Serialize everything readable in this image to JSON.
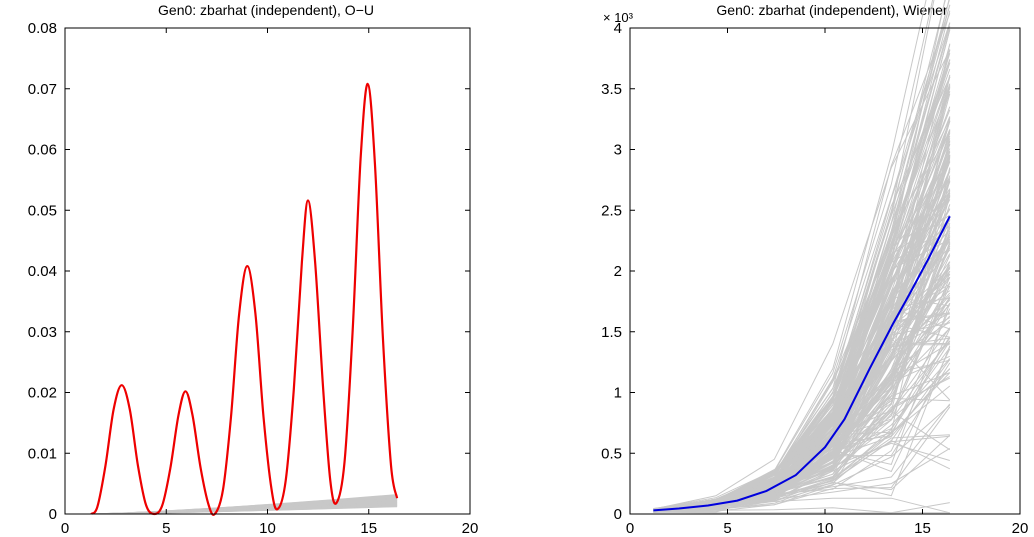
{
  "chart_data": [
    {
      "type": "line",
      "title": "Gen0: zbarhat (independent), O−U",
      "xlabel": "",
      "ylabel": "",
      "xlim": [
        0,
        20
      ],
      "ylim": [
        0,
        0.08
      ],
      "xticks": [
        0,
        5,
        10,
        15,
        20
      ],
      "yticks": [
        0,
        0.01,
        0.02,
        0.03,
        0.04,
        0.05,
        0.06,
        0.07,
        0.08
      ],
      "xtick_labels": [
        "0",
        "5",
        "10",
        "15",
        "20"
      ],
      "ytick_labels": [
        "0",
        "0.01",
        "0.02",
        "0.03",
        "0.04",
        "0.05",
        "0.06",
        "0.07",
        "0.08"
      ],
      "grid": false,
      "legend": "none",
      "series": [
        {
          "color": "#ee0000",
          "values_xy": [
            [
              1.3,
              0.0
            ],
            [
              1.6,
              0.0012
            ],
            [
              2.0,
              0.008
            ],
            [
              2.4,
              0.0172
            ],
            [
              2.8,
              0.0212
            ],
            [
              3.2,
              0.0172
            ],
            [
              3.6,
              0.008
            ],
            [
              4.0,
              0.0015
            ],
            [
              4.4,
              0.0
            ],
            [
              4.8,
              0.0014
            ],
            [
              5.2,
              0.0075
            ],
            [
              5.6,
              0.0162
            ],
            [
              5.95,
              0.0202
            ],
            [
              6.3,
              0.0162
            ],
            [
              6.7,
              0.0075
            ],
            [
              7.1,
              0.0014
            ],
            [
              7.4,
              0.0
            ],
            [
              7.8,
              0.004
            ],
            [
              8.2,
              0.016
            ],
            [
              8.6,
              0.033
            ],
            [
              9.0,
              0.0408
            ],
            [
              9.4,
              0.033
            ],
            [
              9.8,
              0.016
            ],
            [
              10.2,
              0.004
            ],
            [
              10.5,
              0.0008
            ],
            [
              10.9,
              0.0055
            ],
            [
              11.3,
              0.0205
            ],
            [
              11.7,
              0.0415
            ],
            [
              12.0,
              0.0516
            ],
            [
              12.35,
              0.0415
            ],
            [
              12.75,
              0.0205
            ],
            [
              13.1,
              0.0055
            ],
            [
              13.4,
              0.0018
            ],
            [
              13.8,
              0.0085
            ],
            [
              14.2,
              0.03
            ],
            [
              14.6,
              0.0585
            ],
            [
              14.95,
              0.0708
            ],
            [
              15.3,
              0.058
            ],
            [
              15.7,
              0.029
            ],
            [
              16.1,
              0.008
            ],
            [
              16.4,
              0.0026
            ]
          ]
        }
      ],
      "gray_band": {
        "color": "#c8c8c8",
        "start": [
          1.3,
          0.0
        ],
        "end": [
          16.4,
          0.0032
        ],
        "end_low": [
          16.4,
          0.0012
        ],
        "count": 30
      }
    },
    {
      "type": "line",
      "title": "Gen0: zbarhat (independent), Wiener",
      "xlabel": "",
      "ylabel": "",
      "exponent_label": "× 10³",
      "xlim": [
        0,
        20
      ],
      "ylim": [
        0,
        4
      ],
      "xticks": [
        0,
        5,
        10,
        15,
        20
      ],
      "yticks": [
        0,
        0.5,
        1,
        1.5,
        2,
        2.5,
        3,
        3.5,
        4
      ],
      "xtick_labels": [
        "0",
        "5",
        "10",
        "15",
        "20"
      ],
      "ytick_labels": [
        "0",
        "0.5",
        "1",
        "1.5",
        "2",
        "2.5",
        "3",
        "3.5",
        "4"
      ],
      "grid": false,
      "legend": "none",
      "mean_series": {
        "color": "#0000dd",
        "values_xy": [
          [
            1.2,
            0.03
          ],
          [
            2.5,
            0.045
          ],
          [
            4.0,
            0.07
          ],
          [
            5.5,
            0.11
          ],
          [
            7.0,
            0.19
          ],
          [
            8.5,
            0.32
          ],
          [
            10.0,
            0.55
          ],
          [
            11.0,
            0.78
          ],
          [
            12.3,
            1.2
          ],
          [
            13.5,
            1.57
          ],
          [
            14.3,
            1.8
          ],
          [
            15.3,
            2.1
          ],
          [
            16.4,
            2.45
          ]
        ]
      },
      "samples": {
        "color": "#c8c8c8",
        "x": [
          1.2,
          4.4,
          7.4,
          10.4,
          13.4,
          16.4
        ],
        "count": 220,
        "outliers_xy": [
          [
            [
              1.2,
              0.03
            ],
            [
              4.4,
              0.08
            ],
            [
              7.4,
              0.12
            ],
            [
              10.4,
              0.18
            ],
            [
              13.4,
              0.25
            ],
            [
              16.4,
              0.54
            ]
          ],
          [
            [
              1.2,
              0.04
            ],
            [
              4.4,
              0.15
            ],
            [
              7.4,
              0.45
            ],
            [
              10.4,
              1.4
            ],
            [
              13.4,
              2.85
            ],
            [
              16.4,
              3.82
            ]
          ]
        ]
      }
    }
  ]
}
